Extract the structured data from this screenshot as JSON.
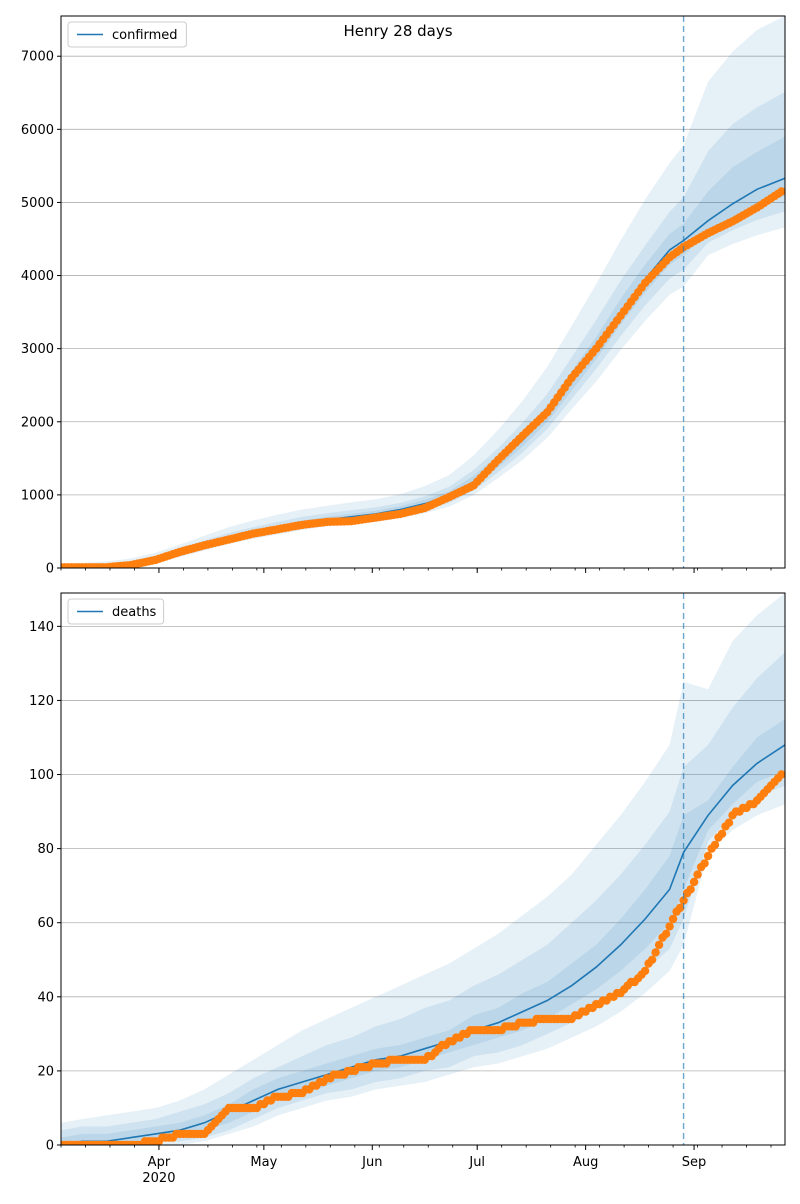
{
  "figure": {
    "title": "Henry 28 days"
  },
  "x_axis": {
    "ticks": [
      {
        "label": "Apr",
        "date": "2020-04-01"
      },
      {
        "label": "May",
        "date": "2020-05-01"
      },
      {
        "label": "Jun",
        "date": "2020-06-01"
      },
      {
        "label": "Jul",
        "date": "2020-07-01"
      },
      {
        "label": "Aug",
        "date": "2020-08-01"
      },
      {
        "label": "Sep",
        "date": "2020-09-01"
      }
    ],
    "year_label": "2020",
    "range": [
      "2020-03-04",
      "2020-09-27"
    ]
  },
  "colors": {
    "model": "#1f77b4",
    "observed": "#ff7f0e",
    "band": "#1f77b4",
    "grid": "#b0b0b0"
  },
  "chart_data": [
    {
      "type": "line",
      "legend": "confirmed",
      "legend_position": "top-left",
      "grid": "horizontal",
      "ylim": [
        0,
        7550
      ],
      "yticks": [
        0,
        1000,
        2000,
        3000,
        4000,
        5000,
        6000,
        7000
      ],
      "forecast_start": "2020-08-29",
      "model": {
        "name": "confirmed",
        "x": [
          "2020-03-04",
          "2020-03-10",
          "2020-03-17",
          "2020-03-24",
          "2020-03-31",
          "2020-04-07",
          "2020-04-14",
          "2020-04-21",
          "2020-04-28",
          "2020-05-05",
          "2020-05-12",
          "2020-05-19",
          "2020-05-26",
          "2020-06-02",
          "2020-06-09",
          "2020-06-16",
          "2020-06-23",
          "2020-06-30",
          "2020-07-07",
          "2020-07-14",
          "2020-07-21",
          "2020-07-28",
          "2020-08-04",
          "2020-08-11",
          "2020-08-18",
          "2020-08-25",
          "2020-08-29",
          "2020-09-05",
          "2020-09-12",
          "2020-09-19",
          "2020-09-27"
        ],
        "y": [
          0,
          0,
          10,
          40,
          100,
          190,
          290,
          390,
          470,
          540,
          610,
          660,
          700,
          740,
          800,
          880,
          990,
          1180,
          1450,
          1750,
          2100,
          2550,
          3000,
          3500,
          3950,
          4350,
          4480,
          4750,
          4980,
          5180,
          5330
        ]
      },
      "bands": [
        {
          "lower": [
            0,
            0,
            0,
            20,
            70,
            150,
            240,
            330,
            400,
            460,
            520,
            570,
            600,
            630,
            680,
            750,
            840,
            1000,
            1230,
            1480,
            1780,
            2170,
            2550,
            2980,
            3380,
            3740,
            3850,
            4280,
            4430,
            4550,
            4660
          ],
          "upper": [
            60,
            70,
            90,
            130,
            210,
            320,
            440,
            560,
            650,
            730,
            800,
            850,
            900,
            940,
            1010,
            1120,
            1270,
            1540,
            1890,
            2290,
            2750,
            3310,
            3880,
            4480,
            5040,
            5540,
            5780,
            6650,
            7060,
            7360,
            7550
          ]
        },
        {
          "lower": [
            0,
            0,
            0,
            25,
            80,
            160,
            255,
            350,
            420,
            485,
            545,
            595,
            630,
            665,
            715,
            790,
            890,
            1060,
            1310,
            1580,
            1900,
            2310,
            2720,
            3170,
            3590,
            3960,
            4080,
            4450,
            4620,
            4760,
            4880
          ],
          "upper": [
            40,
            45,
            60,
            100,
            170,
            280,
            380,
            480,
            560,
            630,
            700,
            750,
            790,
            830,
            890,
            980,
            1110,
            1340,
            1640,
            1990,
            2380,
            2880,
            3390,
            3930,
            4410,
            4870,
            5070,
            5700,
            6070,
            6300,
            6510
          ]
        },
        {
          "lower": [
            0,
            0,
            5,
            32,
            88,
            172,
            268,
            365,
            440,
            508,
            575,
            625,
            663,
            700,
            755,
            833,
            937,
            1117,
            1375,
            1662,
            1995,
            2425,
            2855,
            3330,
            3765,
            4150,
            4275,
            4583,
            4784,
            4952,
            5088
          ],
          "upper": [
            15,
            15,
            25,
            60,
            130,
            230,
            330,
            430,
            510,
            580,
            650,
            700,
            740,
            785,
            845,
            935,
            1050,
            1260,
            1540,
            1860,
            2220,
            2690,
            3160,
            3680,
            4150,
            4570,
            4710,
            5150,
            5480,
            5690,
            5900
          ]
        }
      ],
      "observed": {
        "name": "observed confirmed",
        "x": [
          "2020-03-04",
          "2020-03-10",
          "2020-03-17",
          "2020-03-24",
          "2020-03-31",
          "2020-04-07",
          "2020-04-14",
          "2020-04-21",
          "2020-04-28",
          "2020-05-05",
          "2020-05-12",
          "2020-05-19",
          "2020-05-26",
          "2020-06-02",
          "2020-06-09",
          "2020-06-16",
          "2020-06-23",
          "2020-06-30",
          "2020-07-07",
          "2020-07-14",
          "2020-07-21",
          "2020-07-28",
          "2020-08-04",
          "2020-08-11",
          "2020-08-18",
          "2020-08-25",
          "2020-08-29",
          "2020-09-05",
          "2020-09-12",
          "2020-09-19",
          "2020-09-26"
        ],
        "y": [
          10,
          10,
          10,
          40,
          110,
          220,
          310,
          390,
          470,
          530,
          590,
          630,
          640,
          690,
          740,
          820,
          970,
          1130,
          1480,
          1810,
          2130,
          2600,
          3000,
          3450,
          3900,
          4250,
          4390,
          4580,
          4740,
          4930,
          5150
        ]
      }
    },
    {
      "type": "line",
      "legend": "deaths",
      "legend_position": "top-left",
      "grid": "horizontal",
      "ylim": [
        0,
        149
      ],
      "yticks": [
        0,
        20,
        40,
        60,
        80,
        100,
        120,
        140
      ],
      "forecast_start": "2020-08-29",
      "model": {
        "name": "deaths",
        "x": [
          "2020-03-04",
          "2020-03-10",
          "2020-03-17",
          "2020-03-24",
          "2020-03-31",
          "2020-04-07",
          "2020-04-14",
          "2020-04-21",
          "2020-04-28",
          "2020-05-05",
          "2020-05-12",
          "2020-05-19",
          "2020-05-26",
          "2020-06-02",
          "2020-06-09",
          "2020-06-16",
          "2020-06-23",
          "2020-06-30",
          "2020-07-07",
          "2020-07-14",
          "2020-07-21",
          "2020-07-28",
          "2020-08-04",
          "2020-08-11",
          "2020-08-18",
          "2020-08-25",
          "2020-08-29",
          "2020-09-05",
          "2020-09-12",
          "2020-09-19",
          "2020-09-27"
        ],
        "y": [
          0,
          1,
          1,
          2,
          3,
          4,
          6,
          9,
          12,
          15,
          17,
          19,
          21,
          23,
          24,
          26,
          28,
          31,
          33,
          36,
          39,
          43,
          48,
          54,
          61,
          69,
          79,
          89,
          97,
          103,
          108
        ]
      },
      "bands": [
        {
          "lower": [
            0,
            0,
            0,
            0,
            0,
            0,
            1,
            3,
            5,
            8,
            10,
            12,
            13,
            15,
            16,
            17,
            19,
            21,
            22,
            24,
            26,
            29,
            32,
            36,
            41,
            47,
            54,
            79,
            85,
            89,
            92
          ],
          "upper": [
            6,
            7,
            8,
            9,
            10,
            12,
            15,
            19,
            23,
            27,
            31,
            34,
            37,
            40,
            43,
            46,
            49,
            53,
            57,
            62,
            67,
            73,
            81,
            89,
            98,
            108,
            125,
            123,
            136,
            143,
            149
          ]
        },
        {
          "lower": [
            0,
            0,
            0,
            0,
            1,
            1,
            2,
            4,
            7,
            10,
            12,
            14,
            15,
            17,
            18,
            20,
            21,
            24,
            25,
            27,
            30,
            33,
            37,
            41,
            47,
            53,
            61,
            82,
            89,
            94,
            97
          ],
          "upper": [
            4,
            5,
            5,
            6,
            7,
            9,
            11,
            14,
            18,
            21,
            24,
            27,
            29,
            32,
            34,
            37,
            39,
            43,
            46,
            50,
            54,
            60,
            66,
            73,
            81,
            90,
            102,
            108,
            118,
            126,
            133
          ]
        },
        {
          "lower": [
            0,
            0,
            0,
            1,
            1,
            2,
            4,
            6,
            9,
            12,
            14,
            16,
            18,
            20,
            21,
            23,
            25,
            27,
            29,
            31,
            34,
            38,
            42,
            47,
            53,
            60,
            69,
            85,
            92,
            98,
            101
          ],
          "upper": [
            2,
            3,
            3,
            4,
            5,
            6,
            8,
            11,
            15,
            18,
            20,
            22,
            24,
            26,
            27,
            29,
            31,
            35,
            37,
            41,
            44,
            49,
            54,
            61,
            69,
            78,
            89,
            93,
            102,
            110,
            115
          ]
        }
      ],
      "observed": {
        "name": "observed deaths",
        "x": [
          "2020-03-04",
          "2020-03-10",
          "2020-03-17",
          "2020-03-24",
          "2020-03-31",
          "2020-04-07",
          "2020-04-14",
          "2020-04-21",
          "2020-04-28",
          "2020-05-05",
          "2020-05-12",
          "2020-05-19",
          "2020-05-26",
          "2020-06-02",
          "2020-06-09",
          "2020-06-16",
          "2020-06-23",
          "2020-06-30",
          "2020-07-07",
          "2020-07-14",
          "2020-07-21",
          "2020-07-28",
          "2020-08-04",
          "2020-08-11",
          "2020-08-18",
          "2020-08-25",
          "2020-08-29",
          "2020-09-05",
          "2020-09-12",
          "2020-09-19",
          "2020-09-26"
        ],
        "y": [
          0,
          0,
          0,
          0,
          1,
          3,
          3,
          10,
          10,
          13,
          14,
          18,
          20,
          22,
          23,
          23,
          28,
          31,
          31,
          33,
          34,
          34,
          38,
          41,
          47,
          59,
          66,
          78,
          89,
          93,
          100
        ]
      }
    }
  ]
}
